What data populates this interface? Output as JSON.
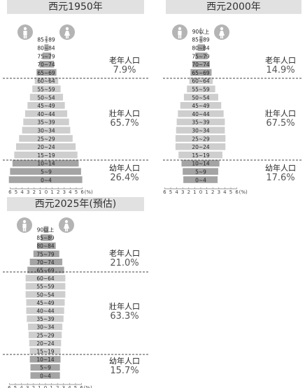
{
  "colors": {
    "elder": "#a4a4a4",
    "working": "#cecece",
    "young": "#a4a4a4",
    "divider": "#444444",
    "icon": "#b4b4b4",
    "title_bg": "#e1e1e1"
  },
  "icons": {
    "male": "male-person-icon",
    "female": "female-person-icon"
  },
  "labels": {
    "elder": "老年人口",
    "working": "壯年人口",
    "young": "幼年人口"
  },
  "chart_data": [
    {
      "type": "bar",
      "title": "西元1950年",
      "categories": [
        "0~4",
        "5~9",
        "10~14",
        "15~19",
        "20~24",
        "25~29",
        "30~34",
        "35~39",
        "40~44",
        "45~49",
        "50~54",
        "55~59",
        "60~64",
        "65~69",
        "70~74",
        "75~79",
        "80~84",
        "85~89"
      ],
      "series": [
        {
          "side": "male",
          "values": [
            6.2,
            6.0,
            5.6,
            5.3,
            5.0,
            4.5,
            4.0,
            3.8,
            3.5,
            3.1,
            2.7,
            2.3,
            1.9,
            1.6,
            1.1,
            0.6,
            0.3,
            0.1
          ]
        },
        {
          "side": "female",
          "values": [
            6.0,
            5.8,
            5.4,
            5.2,
            4.9,
            4.4,
            4.0,
            3.8,
            3.5,
            3.1,
            2.8,
            2.4,
            2.0,
            1.7,
            1.3,
            0.8,
            0.4,
            0.2
          ]
        }
      ],
      "xlim": [
        -6,
        6
      ],
      "x_ticks": [
        "6",
        "5",
        "4",
        "3",
        "2",
        "1",
        "0",
        "1",
        "2",
        "3",
        "4",
        "5",
        "6"
      ],
      "x_unit": "(%)",
      "groups": {
        "elder": "7.9%",
        "working": "65.7%",
        "young": "26.4%"
      }
    },
    {
      "type": "bar",
      "title": "西元2000年",
      "categories": [
        "0~4",
        "5~9",
        "10~14",
        "15~19",
        "20~24",
        "25~29",
        "30~34",
        "35~39",
        "40~44",
        "45~49",
        "50~54",
        "55~59",
        "60~64",
        "65~69",
        "70~74",
        "75~79",
        "80~84",
        "85~89",
        "90以上"
      ],
      "series": [
        {
          "side": "male",
          "values": [
            2.9,
            3.0,
            3.2,
            3.7,
            4.2,
            4.2,
            4.1,
            4.0,
            3.8,
            3.4,
            2.8,
            2.3,
            1.9,
            1.7,
            1.4,
            0.9,
            0.5,
            0.2,
            0.1
          ]
        },
        {
          "side": "female",
          "values": [
            2.8,
            2.9,
            3.1,
            3.6,
            4.1,
            4.1,
            4.0,
            4.0,
            3.8,
            3.4,
            2.9,
            2.4,
            2.0,
            1.8,
            1.5,
            1.1,
            0.7,
            0.3,
            0.1
          ]
        }
      ],
      "xlim": [
        -6,
        6
      ],
      "x_ticks": [
        "6",
        "5",
        "4",
        "3",
        "2",
        "1",
        "0",
        "1",
        "2",
        "3",
        "4",
        "5",
        "6"
      ],
      "x_unit": "(%)",
      "groups": {
        "elder": "14.9%",
        "working": "67.5%",
        "young": "17.6%"
      }
    },
    {
      "type": "bar",
      "title": "西元2025年(預估)",
      "categories": [
        "0~4",
        "5~9",
        "10~14",
        "15~19",
        "20~24",
        "25~29",
        "30~34",
        "35~39",
        "40~44",
        "45~49",
        "50~54",
        "55~59",
        "60~64",
        "65~69",
        "70~74",
        "75~79",
        "80~84",
        "85~89",
        "90以上"
      ],
      "series": [
        {
          "side": "male",
          "values": [
            2.5,
            2.5,
            2.6,
            2.6,
            2.7,
            2.8,
            2.9,
            3.1,
            3.2,
            3.2,
            3.3,
            3.3,
            3.3,
            3.0,
            2.6,
            2.0,
            1.4,
            0.8,
            0.3
          ]
        },
        {
          "side": "female",
          "values": [
            2.4,
            2.4,
            2.5,
            2.5,
            2.6,
            2.7,
            2.8,
            3.0,
            3.1,
            3.2,
            3.3,
            3.3,
            3.3,
            3.1,
            2.8,
            2.3,
            1.7,
            1.1,
            0.5
          ]
        }
      ],
      "xlim": [
        -6,
        6
      ],
      "x_ticks": [
        "6",
        "5",
        "4",
        "3",
        "2",
        "1",
        "0",
        "1",
        "2",
        "3",
        "4",
        "5",
        "6"
      ],
      "x_unit": "(%)",
      "groups": {
        "elder": "21.0%",
        "working": "63.3%",
        "young": "15.7%"
      }
    }
  ]
}
